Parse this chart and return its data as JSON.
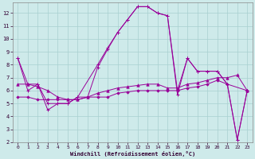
{
  "xlabel": "Windchill (Refroidissement éolien,°C)",
  "background_color": "#ceeaea",
  "grid_color": "#a8d0d0",
  "line_color": "#990099",
  "xlim": [
    -0.5,
    23.5
  ],
  "ylim": [
    2,
    12.8
  ],
  "xticks": [
    0,
    1,
    2,
    3,
    4,
    5,
    6,
    7,
    8,
    9,
    10,
    11,
    12,
    13,
    14,
    15,
    16,
    17,
    18,
    19,
    20,
    21,
    22,
    23
  ],
  "yticks": [
    2,
    3,
    4,
    5,
    6,
    7,
    8,
    9,
    10,
    11,
    12
  ],
  "s1_y": [
    8.5,
    6.5,
    6.5,
    5.0,
    5.0,
    5.0,
    5.5,
    8.0,
    9.3,
    10.5,
    11.5,
    12.5,
    12.5,
    12.0,
    11.8,
    5.7,
    8.5,
    7.5,
    7.5,
    7.5,
    6.5,
    2.2,
    6.0
  ],
  "s1_x": [
    0,
    1,
    2,
    3,
    4,
    5,
    6,
    8,
    9,
    10,
    11,
    12,
    13,
    14,
    15,
    16,
    17,
    18,
    19,
    20,
    21,
    22,
    23
  ],
  "s2_y": [
    8.5,
    6.0,
    6.5,
    4.5,
    5.0,
    5.0,
    5.5,
    5.5,
    7.8,
    9.2,
    10.5,
    11.5,
    12.5,
    12.5,
    12.0,
    11.8,
    6.0,
    8.5,
    7.5,
    7.5,
    7.5,
    6.5,
    2.2,
    6.0
  ],
  "s2_x": [
    0,
    1,
    2,
    3,
    4,
    5,
    6,
    7,
    8,
    9,
    10,
    11,
    12,
    13,
    14,
    15,
    16,
    17,
    18,
    19,
    20,
    21,
    22,
    23
  ],
  "s3_y": [
    6.5,
    6.5,
    6.3,
    6.0,
    5.5,
    5.3,
    5.3,
    5.5,
    5.8,
    6.0,
    6.2,
    6.3,
    6.4,
    6.5,
    6.5,
    6.2,
    6.2,
    6.5,
    6.6,
    6.8,
    7.0,
    7.0,
    7.2,
    6.0
  ],
  "s3_x": [
    0,
    1,
    2,
    3,
    4,
    5,
    6,
    7,
    8,
    9,
    10,
    11,
    12,
    13,
    14,
    15,
    16,
    17,
    18,
    19,
    20,
    21,
    22,
    23
  ],
  "s4_y": [
    5.5,
    5.5,
    5.3,
    5.3,
    5.3,
    5.3,
    5.3,
    5.5,
    5.5,
    5.5,
    5.8,
    5.9,
    6.0,
    6.0,
    6.0,
    6.0,
    6.0,
    6.2,
    6.3,
    6.5,
    6.8,
    6.5,
    6.0
  ],
  "s4_x": [
    0,
    1,
    2,
    3,
    4,
    5,
    6,
    7,
    8,
    9,
    10,
    11,
    12,
    13,
    14,
    15,
    16,
    17,
    18,
    19,
    20,
    21,
    23
  ]
}
